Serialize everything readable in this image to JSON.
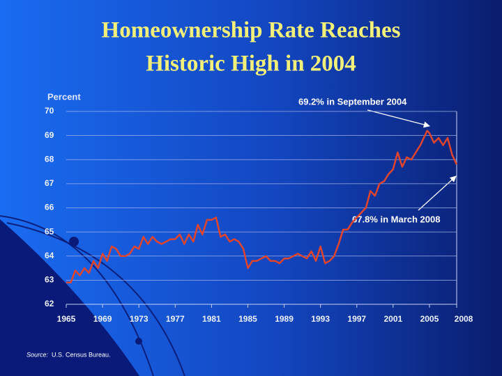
{
  "chart_data": {
    "type": "line",
    "title": "Homeownership Rate Reaches",
    "subtitle": "Historic High in 2004",
    "y_label": "Percent",
    "annotations": [
      "69.2% in September 2004",
      "67.8% in March 2008"
    ],
    "source_label": "Source:",
    "source": "U.S. Census Bureau.",
    "x": [
      1965,
      1965.5,
      1966,
      1966.5,
      1967,
      1967.5,
      1968,
      1968.5,
      1969,
      1969.5,
      1970,
      1970.5,
      1971,
      1971.5,
      1972,
      1972.5,
      1973,
      1973.5,
      1974,
      1974.5,
      1975,
      1975.5,
      1976,
      1976.5,
      1977,
      1977.5,
      1978,
      1978.5,
      1979,
      1979.5,
      1980,
      1980.5,
      1981,
      1981.5,
      1982,
      1982.5,
      1983,
      1983.5,
      1984,
      1984.5,
      1985,
      1985.5,
      1986,
      1986.5,
      1987,
      1987.5,
      1988,
      1988.5,
      1989,
      1989.5,
      1990,
      1990.5,
      1991,
      1991.5,
      1992,
      1992.5,
      1993,
      1993.5,
      1994,
      1994.5,
      1995,
      1995.5,
      1996,
      1996.5,
      1997,
      1997.5,
      1998,
      1998.5,
      1999,
      1999.5,
      2000,
      2000.5,
      2001,
      2001.5,
      2002,
      2002.5,
      2003,
      2003.5,
      2004,
      2004.75,
      2005,
      2005.5,
      2006,
      2006.5,
      2007,
      2007.5,
      2008
    ],
    "series": [
      {
        "name": "Homeownership rate",
        "color": "#e2442c",
        "values": [
          62.9,
          62.9,
          63.4,
          63.2,
          63.5,
          63.3,
          63.8,
          63.5,
          64.1,
          63.8,
          64.4,
          64.3,
          64.0,
          64.0,
          64.1,
          64.4,
          64.3,
          64.8,
          64.5,
          64.8,
          64.6,
          64.5,
          64.6,
          64.7,
          64.7,
          64.9,
          64.5,
          64.9,
          64.6,
          65.3,
          64.9,
          65.5,
          65.5,
          65.6,
          64.8,
          64.9,
          64.6,
          64.7,
          64.6,
          64.3,
          63.5,
          63.8,
          63.8,
          63.9,
          64.0,
          63.8,
          63.8,
          63.7,
          63.9,
          63.9,
          64.0,
          64.1,
          64.0,
          63.9,
          64.2,
          63.8,
          64.4,
          63.7,
          63.8,
          64.0,
          64.5,
          65.1,
          65.1,
          65.4,
          65.6,
          65.8,
          66.0,
          66.7,
          66.5,
          67.0,
          67.1,
          67.4,
          67.6,
          68.3,
          67.7,
          68.1,
          68.0,
          68.3,
          68.6,
          69.2,
          69.1,
          68.7,
          68.9,
          68.6,
          68.9,
          68.2,
          67.8
        ]
      }
    ],
    "xlim": [
      1965,
      2008
    ],
    "xticks": [
      1965,
      1969,
      1973,
      1977,
      1981,
      1985,
      1989,
      1993,
      1997,
      2001,
      2005,
      2008
    ],
    "ylim": [
      62,
      70
    ],
    "yticks": [
      62,
      63,
      64,
      65,
      66,
      67,
      68,
      69,
      70
    ],
    "grid": true
  }
}
